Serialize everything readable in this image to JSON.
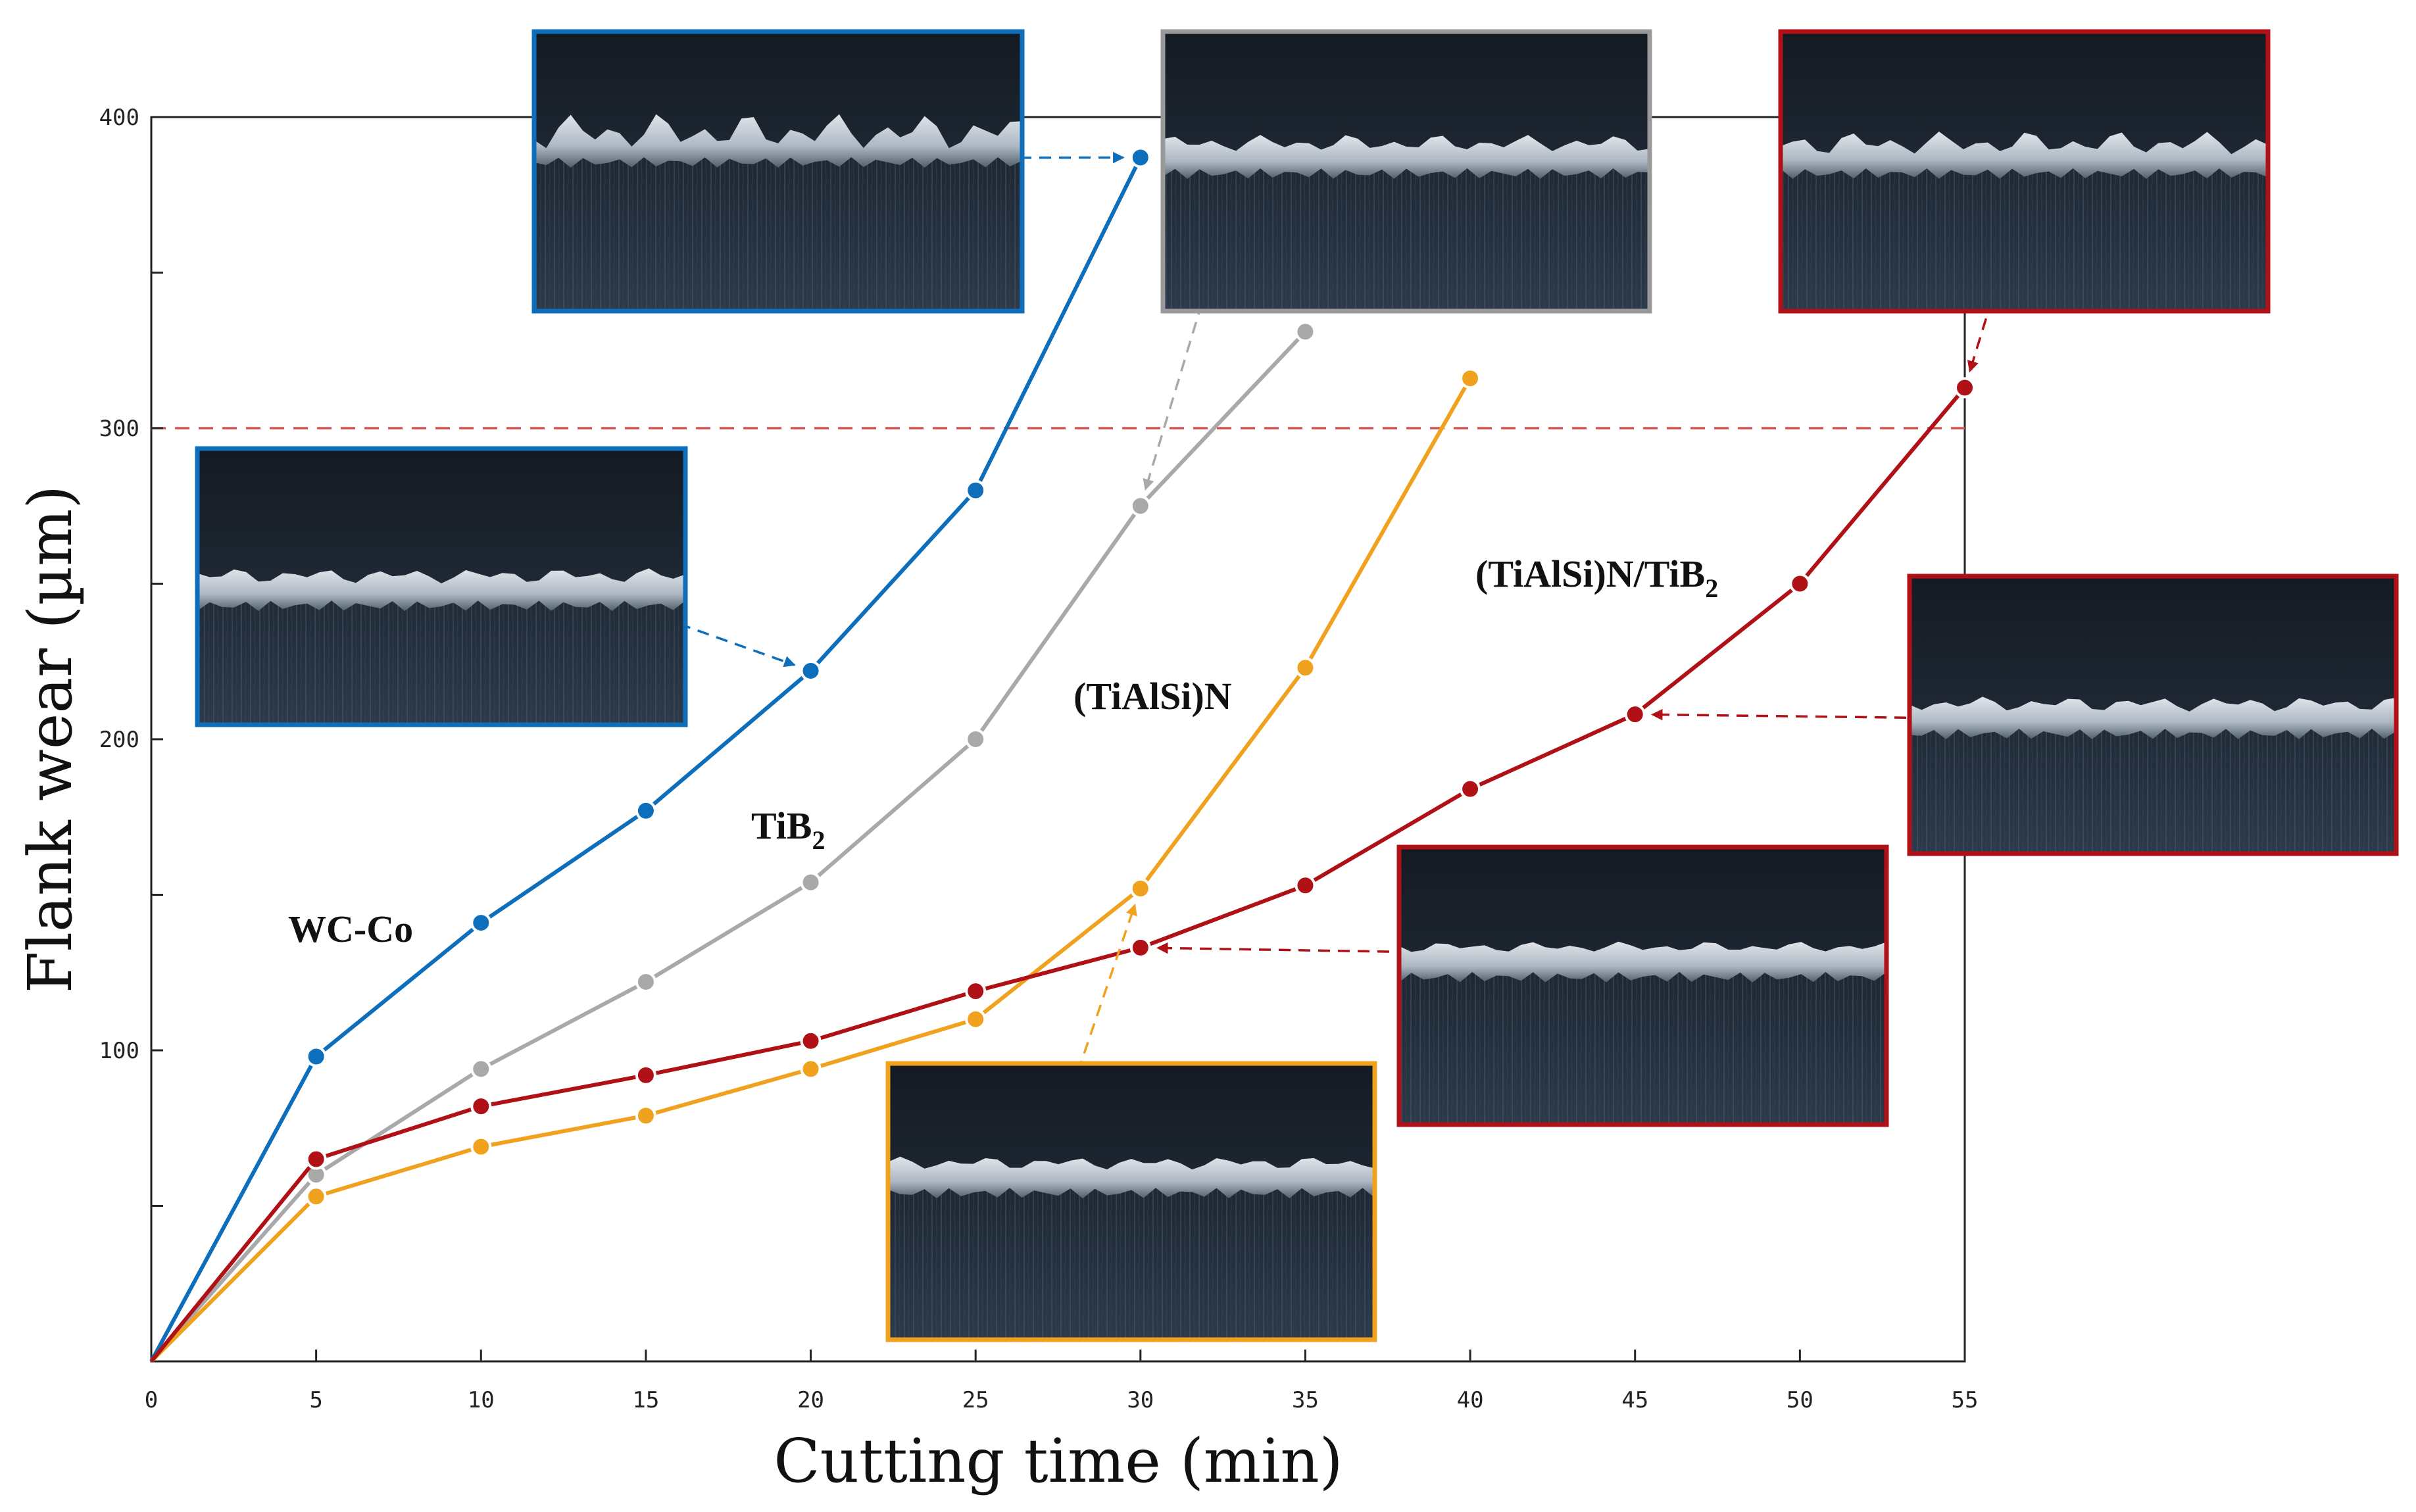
{
  "chart_data": {
    "type": "line",
    "title": "",
    "xlabel": "Cutting time (min)",
    "ylabel": "Flank wear (µm)",
    "xlim": [
      0,
      55
    ],
    "ylim": [
      0,
      400
    ],
    "x_ticks": [
      "0",
      "5",
      "10",
      "15",
      "20",
      "25",
      "30",
      "35",
      "40",
      "45",
      "50",
      "55"
    ],
    "y_ticks": [
      "100",
      "200",
      "300",
      "400"
    ],
    "threshold": {
      "y": 300,
      "color": "#d9534f",
      "style": "dashed"
    },
    "grid": false,
    "legend": "inline labels",
    "series": [
      {
        "name": "WC-Co",
        "label_main": "WC-Co",
        "label_sub": "",
        "color": "#0d6ebc",
        "x": [
          0,
          5,
          10,
          15,
          20,
          25,
          30
        ],
        "y": [
          0,
          98,
          141,
          177,
          222,
          280,
          387
        ]
      },
      {
        "name": "TiB2",
        "label_main": "TiB",
        "label_sub": "2",
        "color": "#a9a9a9",
        "x": [
          0,
          5,
          10,
          15,
          20,
          25,
          30,
          35
        ],
        "y": [
          0,
          60,
          94,
          122,
          154,
          200,
          275,
          331
        ]
      },
      {
        "name": "(TiAlSi)N",
        "label_main": "(TiAlSi)N",
        "label_sub": "",
        "color": "#f0a21f",
        "x": [
          0,
          5,
          10,
          15,
          20,
          25,
          30,
          35,
          40
        ],
        "y": [
          0,
          53,
          69,
          79,
          94,
          110,
          152,
          223,
          316
        ]
      },
      {
        "name": "(TiAlSi)N/TiB2",
        "label_main": "(TiAlSi)N/TiB",
        "label_sub": "2",
        "color": "#b01116",
        "x": [
          0,
          5,
          10,
          15,
          20,
          25,
          30,
          35,
          40,
          45,
          50,
          55
        ],
        "y": [
          0,
          65,
          82,
          92,
          103,
          119,
          133,
          153,
          184,
          208,
          250,
          313
        ]
      }
    ],
    "inset_images": [
      {
        "name": "wc-co-30min",
        "frame_color": "#0d6ebc",
        "series": "WC-Co",
        "x": 30
      },
      {
        "name": "wc-co-20min",
        "frame_color": "#0d6ebc",
        "series": "WC-Co",
        "x": 20
      },
      {
        "name": "tib2-30min",
        "frame_color": "#9a9a9a",
        "series": "TiB2",
        "x": 30
      },
      {
        "name": "tialsin-30min",
        "frame_color": "#f0a21f",
        "series": "(TiAlSi)N",
        "x": 30
      },
      {
        "name": "tialsin-tib2-55min",
        "frame_color": "#b01116",
        "series": "(TiAlSi)N/TiB2",
        "x": 55
      },
      {
        "name": "tialsin-tib2-45min",
        "frame_color": "#b01116",
        "series": "(TiAlSi)N/TiB2",
        "x": 45
      },
      {
        "name": "tialsin-tib2-30min",
        "frame_color": "#b01116",
        "series": "(TiAlSi)N/TiB2",
        "x": 30
      }
    ]
  }
}
